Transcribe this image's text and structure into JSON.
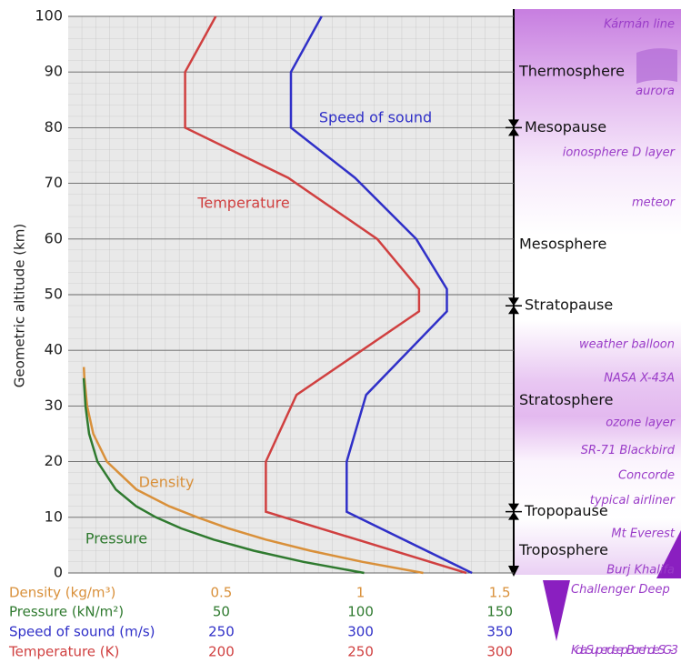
{
  "chart_data": {
    "type": "line",
    "y_label": "Geometric altitude (km)",
    "ylim": [
      0,
      100
    ],
    "yticks": [
      0,
      10,
      20,
      30,
      40,
      50,
      60,
      70,
      80,
      90,
      100
    ],
    "grid": true,
    "series": [
      {
        "name": "Temperature",
        "axis_label": "Temperature (K)",
        "color": "#d04040",
        "xlim": [
          145,
          305
        ],
        "xticks": [
          200,
          250,
          300
        ],
        "altitude": [
          0,
          11,
          20,
          32,
          47,
          51,
          60,
          71,
          80,
          90,
          100
        ],
        "values": [
          288,
          216,
          216,
          227,
          271,
          271,
          256,
          224,
          187,
          187,
          198
        ]
      },
      {
        "name": "Speed of sound",
        "axis_label": "Speed of sound (m/s)",
        "color": "#3030c8",
        "xlim": [
          195,
          355
        ],
        "xticks": [
          250,
          300,
          350
        ],
        "altitude": [
          0,
          11,
          20,
          32,
          47,
          51,
          60,
          71,
          80,
          90,
          100
        ],
        "values": [
          340,
          295,
          295,
          302,
          331,
          331,
          320,
          298,
          275,
          275,
          286
        ]
      },
      {
        "name": "Density",
        "axis_label": "Density (kg/m³)",
        "color": "#d9903a",
        "xlim": [
          -0.05,
          1.55
        ],
        "xticks": [
          0.5,
          1,
          1.5
        ],
        "altitude": [
          0,
          2,
          4,
          6,
          8,
          10,
          12,
          15,
          20,
          25,
          30,
          35,
          37
        ],
        "values": [
          1.225,
          1.007,
          0.819,
          0.66,
          0.526,
          0.414,
          0.312,
          0.195,
          0.089,
          0.04,
          0.018,
          0.008,
          0.006
        ]
      },
      {
        "name": "Pressure",
        "axis_label": "Pressure (kN/m²)",
        "color": "#2f7a2f",
        "xlim": [
          -5,
          155
        ],
        "xticks": [
          50,
          100,
          150
        ],
        "altitude": [
          0,
          2,
          4,
          6,
          8,
          10,
          12,
          15,
          20,
          25,
          30,
          35
        ],
        "values": [
          101.3,
          79.5,
          61.6,
          47.2,
          35.6,
          26.5,
          19.4,
          12.1,
          5.5,
          2.5,
          1.2,
          0.57
        ]
      }
    ],
    "layers": [
      {
        "text": "Thermosphere",
        "altitude": 90,
        "boundary": false
      },
      {
        "text": "Mesopause",
        "altitude": 80,
        "boundary": true
      },
      {
        "text": "Mesosphere",
        "altitude": 59,
        "boundary": false
      },
      {
        "text": "Stratopause",
        "altitude": 48,
        "boundary": true
      },
      {
        "text": "Stratosphere",
        "altitude": 31,
        "boundary": false
      },
      {
        "text": "Tropopause",
        "altitude": 11,
        "boundary": true
      },
      {
        "text": "Troposphere",
        "altitude": 4,
        "boundary": false
      }
    ],
    "events": [
      {
        "text": "Kármán line",
        "altitude": 98.5
      },
      {
        "text": "aurora",
        "altitude": 86.5
      },
      {
        "text": "ionosphere D layer",
        "altitude": 75.5
      },
      {
        "text": "meteor",
        "altitude": 66.5
      },
      {
        "text": "weather balloon",
        "altitude": 41
      },
      {
        "text": "NASA X-43A",
        "altitude": 35
      },
      {
        "text": "ozone layer",
        "altitude": 27
      },
      {
        "text": "SR-71 Blackbird",
        "altitude": 22
      },
      {
        "text": "Concorde",
        "altitude": 17.5
      },
      {
        "text": "typical airliner",
        "altitude": 13
      },
      {
        "text": "Mt Everest",
        "altitude": 7
      },
      {
        "text": "Burj Khalifa",
        "altitude": 0.5
      },
      {
        "text": "Challenger Deep",
        "altitude": -3
      },
      {
        "text": "Kola Superdeep Borehole SG-3",
        "altitude": -14
      }
    ]
  }
}
